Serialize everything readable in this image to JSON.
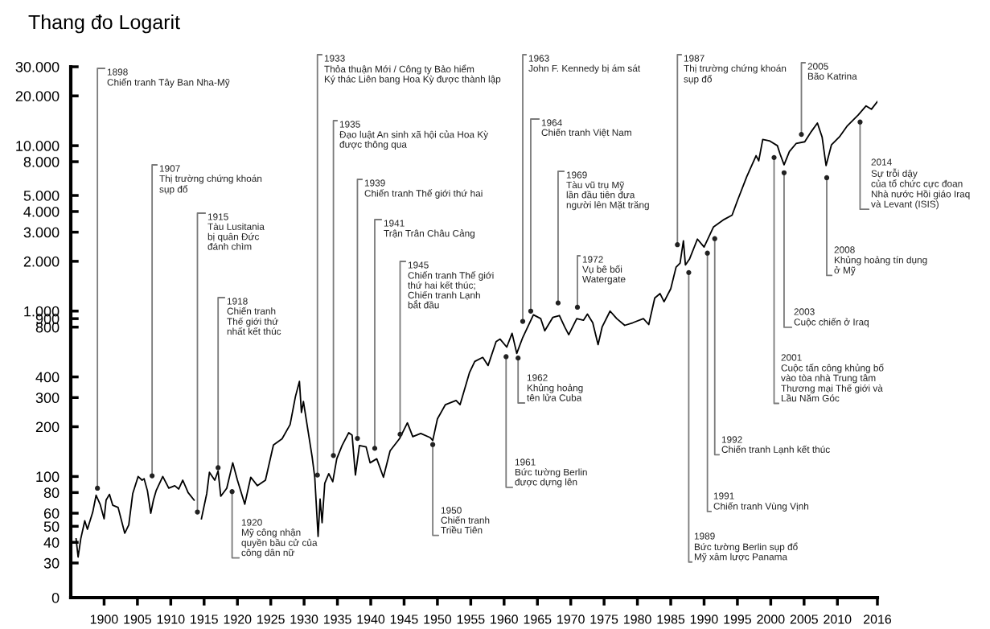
{
  "chart_data": {
    "type": "line",
    "title": "Thang đo Logarit",
    "x": [
      1895.8,
      1896.1,
      1896.5,
      1897.1,
      1897.5,
      1898.3,
      1898.8,
      1899.4,
      1900.0,
      1900.3,
      1900.8,
      1901.3,
      1902.1,
      1903.1,
      1903.7,
      1904.3,
      1905.1,
      1905.7,
      1906.0,
      1906.5,
      1907.0,
      1907.4,
      1907.8,
      1908.8,
      1909.7,
      1910.6,
      1911.2,
      1911.8,
      1912.6,
      1913.5,
      1914.0,
      1914.6,
      1915.4,
      1915.8,
      1916.6,
      1917.1,
      1917.5,
      1918.4,
      1919.3,
      1920.0,
      1921.1,
      1922.0,
      1923.0,
      1924.2,
      1925.4,
      1926.7,
      1927.9,
      1928.7,
      1929.3,
      1929.6,
      1929.9,
      1930.6,
      1931.2,
      1931.6,
      1932.1,
      1932.4,
      1932.7,
      1933.1,
      1933.7,
      1934.3,
      1934.9,
      1935.7,
      1936.7,
      1937.2,
      1937.7,
      1938.3,
      1939.3,
      1939.9,
      1940.9,
      1941.9,
      1942.9,
      1944.3,
      1945.5,
      1946.3,
      1947.5,
      1948.9,
      1949.3,
      1950.0,
      1951.2,
      1952.8,
      1953.4,
      1954.8,
      1955.6,
      1956.8,
      1957.6,
      1958.8,
      1959.4,
      1960.4,
      1961.2,
      1961.9,
      1962.8,
      1964.4,
      1965.5,
      1966.1,
      1967.3,
      1968.3,
      1969.1,
      1969.7,
      1970.9,
      1971.9,
      1972.5,
      1973.3,
      1974.1,
      1974.7,
      1975.9,
      1976.9,
      1978.1,
      1979.3,
      1980.9,
      1981.7,
      1982.6,
      1983.4,
      1984.0,
      1985.0,
      1985.8,
      1986.4,
      1986.9,
      1987.2,
      1987.8,
      1989.0,
      1990.0,
      1991.4,
      1993.0,
      1994.2,
      1995.0,
      1996.4,
      1997.8,
      1998.2,
      1998.8,
      1999.8,
      2001.0,
      2001.4,
      2002.0,
      2002.8,
      2003.8,
      2005.1,
      2006.1,
      2007.0,
      2007.7,
      2008.3,
      2009.1,
      2010.3,
      2011.5,
      2013.1,
      2014.3,
      2015.1,
      2016.0
    ],
    "series": [
      {
        "color": "#000000",
        "values": [
          42,
          32.6,
          42,
          54,
          48,
          61,
          77,
          68,
          55.5,
          72,
          78,
          67,
          65,
          45.4,
          51,
          79,
          100,
          95,
          97,
          82,
          60,
          72,
          82,
          100,
          85,
          88,
          84,
          95,
          80,
          72,
          null,
          55.5,
          79,
          106,
          95,
          108,
          76,
          85,
          121,
          95,
          68,
          99,
          88,
          95,
          155,
          169,
          206,
          304,
          376,
          244,
          284,
          188,
          132,
          99,
          43.4,
          73,
          52.5,
          91,
          104,
          93,
          128,
          154,
          184,
          178,
          102,
          154,
          151,
          121,
          128,
          99,
          143,
          169,
          211,
          174,
          182,
          172,
          165,
          223,
          272,
          288,
          272,
          424,
          496,
          525,
          469,
          654,
          677,
          606,
          734,
          555,
          693,
          950,
          900,
          760,
          915,
          940,
          800,
          720,
          900,
          880,
          960,
          850,
          627,
          800,
          1000,
          900,
          820,
          850,
          900,
          829,
          1200,
          1275,
          1140,
          1364,
          1844,
          1950,
          2660,
          1900,
          2058,
          2724,
          2440,
          3220,
          3580,
          3800,
          4650,
          6500,
          8700,
          8100,
          10900,
          10700,
          10000,
          8900,
          7660,
          9220,
          10300,
          10560,
          12200,
          13700,
          11300,
          7580,
          10100,
          11300,
          13200,
          15300,
          17400,
          16600,
          18500
        ]
      }
    ],
    "xlim": [
      1895,
      2016
    ],
    "xticks": [
      1900,
      1905,
      1910,
      1915,
      1920,
      1925,
      1930,
      1935,
      1940,
      1945,
      1950,
      1955,
      1960,
      1965,
      1970,
      1975,
      1980,
      1985,
      1990,
      1995,
      2000,
      2005,
      2010,
      2016
    ],
    "ylim": [
      0,
      30000
    ],
    "yticks": [
      0,
      30,
      40,
      50,
      60,
      80,
      100,
      200,
      300,
      400,
      800,
      900,
      {
        "value": 1000,
        "label": "1.000"
      },
      {
        "value": 2000,
        "label": "2.000"
      },
      {
        "value": 3000,
        "label": "3.000"
      },
      {
        "value": 4000,
        "label": "4.000"
      },
      {
        "value": 5000,
        "label": "5.000"
      },
      {
        "value": 8000,
        "label": "8.000"
      },
      {
        "value": 10000,
        "label": "10.000"
      },
      {
        "value": 20000,
        "label": "20.000"
      },
      {
        "value": 30000,
        "label": "30.000"
      }
    ],
    "log": true,
    "annotations": [
      {
        "text": "1898\nChiến tranh Tây Ban Nha-Mỹ",
        "x": 1899.0,
        "y": 85
      },
      {
        "text": "1907\nThị trường chứng khoán\nsụp đổ",
        "x": 1907.2,
        "y": 101
      },
      {
        "text": "1915\nTàu Lusitania\nbị quân Đức\nđánh chìm",
        "x": 1914.0,
        "y": 61
      },
      {
        "text": "1918\nChiến tranh\nThế giới thứ\nnhất kết thúc",
        "x": 1917.1,
        "y": 113
      },
      {
        "text": "1920\nMỹ công nhận\nquyền bầu cử của\ncông dân nữ",
        "x": 1919.2,
        "y": 81
      },
      {
        "text": "1933\nThỏa thuận Mới / Công ty Bảo hiểm\nKý thác Liên bang Hoa Kỳ được thành lập",
        "x": 1932.0,
        "y": 102
      },
      {
        "text": "1935\nĐạo luật An sinh xã hội của Hoa Kỳ\nđược thông qua",
        "x": 1934.4,
        "y": 134
      },
      {
        "text": "1939\nChiến tranh Thế giới thứ hai",
        "x": 1938.0,
        "y": 170
      },
      {
        "text": "1941\nTrận Trân Châu Cảng",
        "x": 1940.6,
        "y": 148
      },
      {
        "text": "1945\nChiến tranh Thế giới\nthứ hai kết thúc;\nChiến tranh Lạnh\nbắt đầu",
        "x": 1944.4,
        "y": 180
      },
      {
        "text": "1950\nChiến tranh\nTriều Tiên",
        "x": 1949.3,
        "y": 156
      },
      {
        "text": "1961\nBức tường Berlin\nđược dựng lên",
        "x": 1960.3,
        "y": 530
      },
      {
        "text": "1962\nKhủng hoảng\ntên lửa Cuba",
        "x": 1962.1,
        "y": 520
      },
      {
        "text": "1963\nJohn F. Kennedy bị ám sát",
        "x": 1962.8,
        "y": 867
      },
      {
        "text": "1964\nChiến tranh Việt Nam",
        "x": 1964.0,
        "y": 1000
      },
      {
        "text": "1969\nTàu vũ trụ Mỹ\nlần đầu tiên đưa\nngười lên Mặt trăng",
        "x": 1968.1,
        "y": 1120
      },
      {
        "text": "1972\nVụ bê bối\nWatergate",
        "x": 1971.0,
        "y": 1055
      },
      {
        "text": "1987\nThị trường chứng khoán\nsụp đổ",
        "x": 1986.0,
        "y": 2520
      },
      {
        "text": "1989\nBức tường Berlin sụp đổ\nMỹ xâm lược Panama",
        "x": 1987.7,
        "y": 1710
      },
      {
        "text": "1991\nChiến tranh Vùng Vịnh",
        "x": 1990.5,
        "y": 2240
      },
      {
        "text": "1992\nChiến tranh Lạnh kết thúc",
        "x": 1991.6,
        "y": 2740
      },
      {
        "text": "2001\nCuộc tấn công khủng bố\nvào tòa nhà Trung tâm\nThương mại Thế giới và\nLầu Năm Góc",
        "x": 2000.5,
        "y": 8480
      },
      {
        "text": "2003\nCuộc chiến ở Iraq",
        "x": 2002.0,
        "y": 6860
      },
      {
        "text": "2005\nBão Katrina",
        "x": 2004.6,
        "y": 11700
      },
      {
        "text": "2008\nKhủng hoảng tín dụng\nở Mỹ",
        "x": 2008.4,
        "y": 6400
      },
      {
        "text": "2014\nSự trỗi dậy\ncủa tổ chức cực đoan\nNhà nước Hồi giáo Iraq\nvà Levant (ISIS)",
        "x": 2013.4,
        "y": 13900
      }
    ]
  }
}
